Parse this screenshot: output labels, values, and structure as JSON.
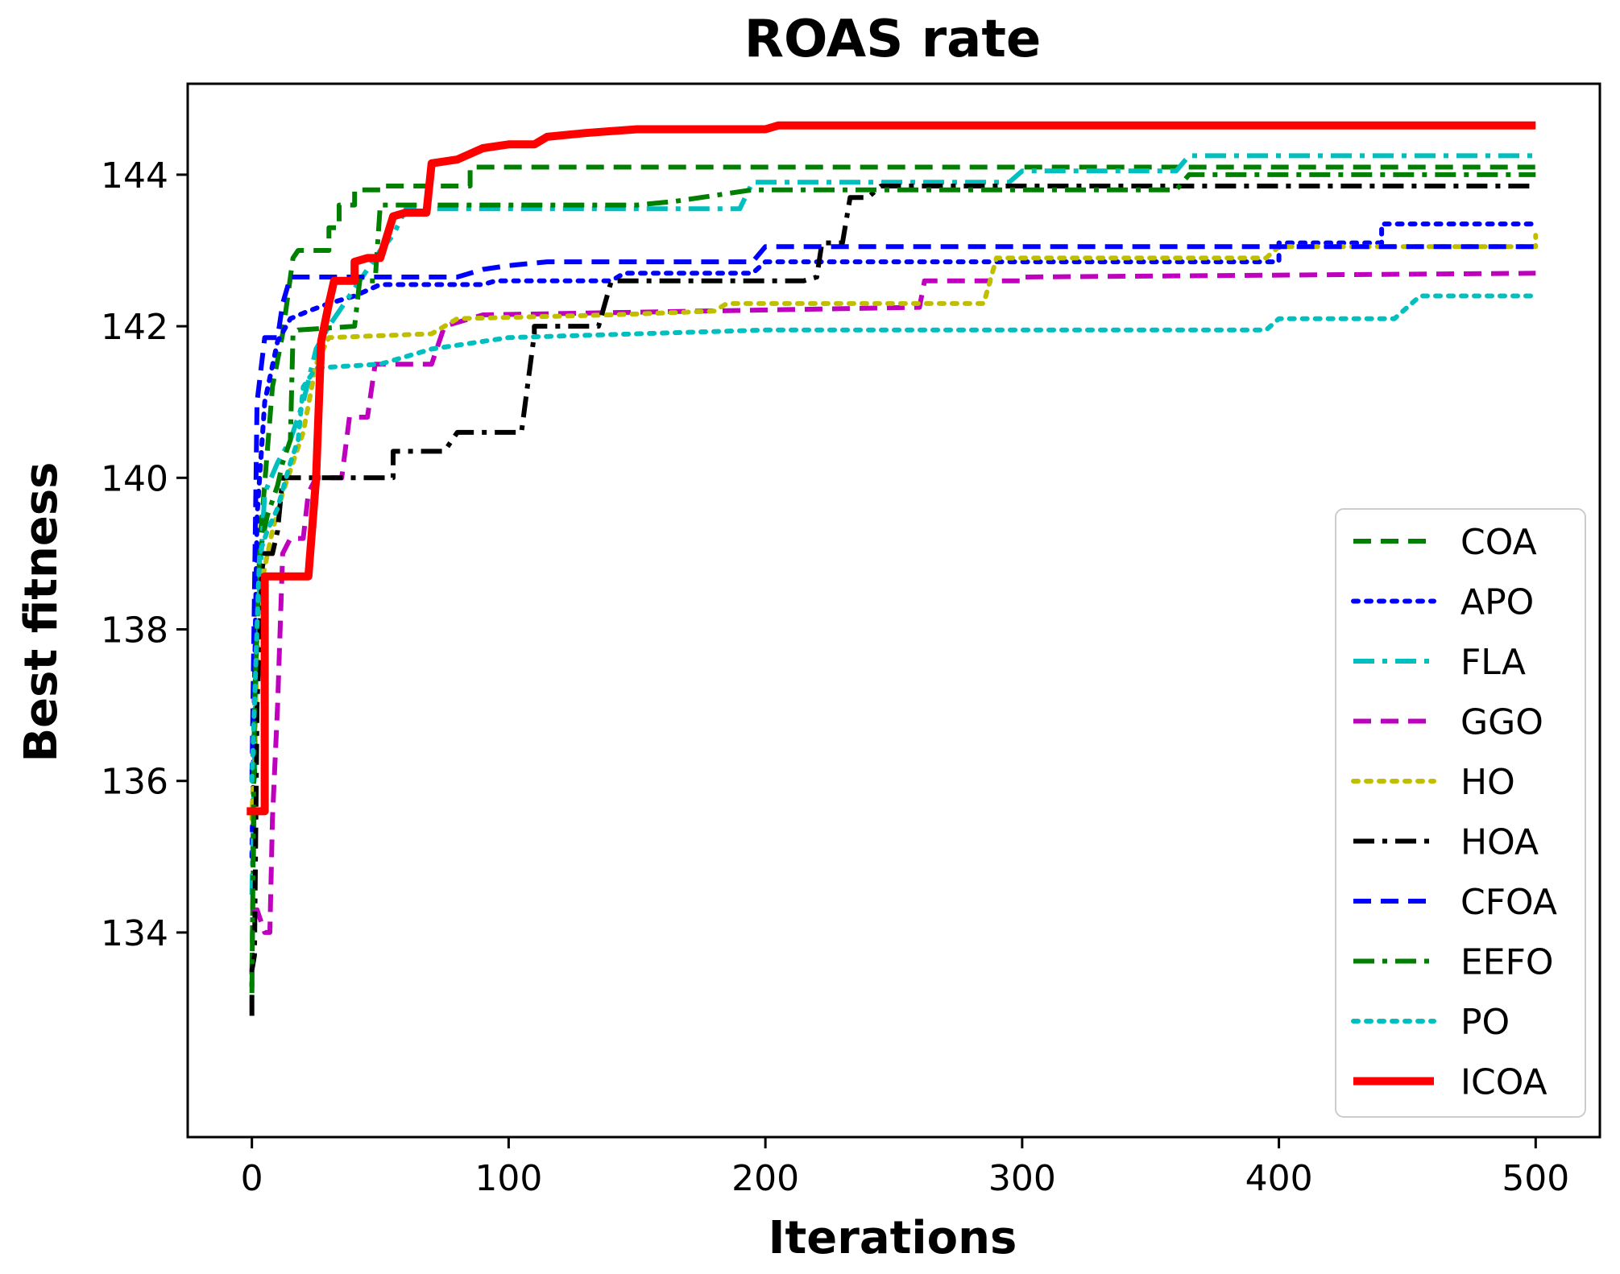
{
  "chart_data": {
    "type": "line",
    "title": "ROAS rate",
    "xlabel": "Iterations",
    "ylabel": "Best fitness",
    "xlim": [
      -25,
      525
    ],
    "ylim": [
      131.3,
      145.2
    ],
    "xticks": [
      0,
      100,
      200,
      300,
      400,
      500
    ],
    "yticks": [
      134,
      136,
      138,
      140,
      142,
      144
    ],
    "grid": false,
    "legend_position": "lower-right",
    "series": [
      {
        "name": "COA",
        "color": "#008000",
        "style": "dashed",
        "width": 6,
        "points": [
          [
            0,
            133.5
          ],
          [
            1,
            136
          ],
          [
            2,
            138.8
          ],
          [
            4,
            139.5
          ],
          [
            8,
            141.2
          ],
          [
            12,
            141.9
          ],
          [
            16,
            142.9
          ],
          [
            18,
            143.0
          ],
          [
            30,
            143.0
          ],
          [
            30,
            143.3
          ],
          [
            34,
            143.3
          ],
          [
            34,
            143.6
          ],
          [
            40,
            143.6
          ],
          [
            40,
            143.8
          ],
          [
            50,
            143.8
          ],
          [
            50,
            143.85
          ],
          [
            75,
            143.85
          ],
          [
            85,
            143.85
          ],
          [
            85,
            144.1
          ],
          [
            500,
            144.1
          ]
        ]
      },
      {
        "name": "APO",
        "color": "#0000ff",
        "style": "dotted",
        "width": 6,
        "points": [
          [
            0,
            135
          ],
          [
            2,
            139.5
          ],
          [
            5,
            141.0
          ],
          [
            10,
            141.8
          ],
          [
            15,
            142.1
          ],
          [
            22,
            142.2
          ],
          [
            30,
            142.3
          ],
          [
            40,
            142.4
          ],
          [
            50,
            142.55
          ],
          [
            90,
            142.55
          ],
          [
            95,
            142.6
          ],
          [
            140,
            142.6
          ],
          [
            145,
            142.7
          ],
          [
            195,
            142.7
          ],
          [
            200,
            142.85
          ],
          [
            400,
            142.85
          ],
          [
            400,
            143.1
          ],
          [
            440,
            143.1
          ],
          [
            440,
            143.35
          ],
          [
            500,
            143.35
          ]
        ]
      },
      {
        "name": "FLA",
        "color": "#00bfbf",
        "style": "dashdot",
        "width": 6,
        "points": [
          [
            0,
            134.5
          ],
          [
            2,
            138
          ],
          [
            5,
            139.8
          ],
          [
            10,
            140.2
          ],
          [
            15,
            140.5
          ],
          [
            20,
            141.0
          ],
          [
            25,
            141.7
          ],
          [
            30,
            142.0
          ],
          [
            40,
            142.5
          ],
          [
            50,
            143.0
          ],
          [
            55,
            143.2
          ],
          [
            60,
            143.55
          ],
          [
            190,
            143.55
          ],
          [
            195,
            143.9
          ],
          [
            295,
            143.9
          ],
          [
            300,
            144.05
          ],
          [
            360,
            144.05
          ],
          [
            365,
            144.25
          ],
          [
            500,
            144.25
          ]
        ]
      },
      {
        "name": "GGO",
        "color": "#bf00bf",
        "style": "dashed",
        "width": 6,
        "points": [
          [
            0,
            134.3
          ],
          [
            2,
            134.3
          ],
          [
            5,
            134.0
          ],
          [
            7,
            134.0
          ],
          [
            8,
            135.5
          ],
          [
            10,
            137
          ],
          [
            12,
            139.0
          ],
          [
            15,
            139.2
          ],
          [
            20,
            139.2
          ],
          [
            22,
            139.8
          ],
          [
            25,
            140.0
          ],
          [
            35,
            140.0
          ],
          [
            38,
            140.8
          ],
          [
            45,
            140.8
          ],
          [
            48,
            141.5
          ],
          [
            65,
            141.5
          ],
          [
            70,
            141.5
          ],
          [
            75,
            142.0
          ],
          [
            80,
            142.05
          ],
          [
            90,
            142.15
          ],
          [
            260,
            142.25
          ],
          [
            262,
            142.6
          ],
          [
            300,
            142.6
          ],
          [
            300,
            142.65
          ],
          [
            500,
            142.7
          ]
        ]
      },
      {
        "name": "HO",
        "color": "#bfbf00",
        "style": "dotted",
        "width": 6,
        "points": [
          [
            0,
            135.5
          ],
          [
            3,
            138.5
          ],
          [
            8,
            139.3
          ],
          [
            12,
            139.8
          ],
          [
            20,
            140.6
          ],
          [
            25,
            141.5
          ],
          [
            30,
            141.85
          ],
          [
            70,
            141.9
          ],
          [
            80,
            142.1
          ],
          [
            140,
            142.15
          ],
          [
            180,
            142.2
          ],
          [
            185,
            142.3
          ],
          [
            285,
            142.3
          ],
          [
            290,
            142.9
          ],
          [
            395,
            142.9
          ],
          [
            400,
            143.05
          ],
          [
            500,
            143.05
          ],
          [
            500,
            143.2
          ]
        ]
      },
      {
        "name": "HOA",
        "color": "#000000",
        "style": "dashdot",
        "width": 6,
        "points": [
          [
            0,
            132.9
          ],
          [
            0,
            133.5
          ],
          [
            1,
            133.7
          ],
          [
            2,
            137
          ],
          [
            4,
            138.8
          ],
          [
            5,
            139.0
          ],
          [
            8,
            139.0
          ],
          [
            10,
            139.3
          ],
          [
            12,
            140.0
          ],
          [
            55,
            140.0
          ],
          [
            55,
            140.35
          ],
          [
            75,
            140.35
          ],
          [
            80,
            140.6
          ],
          [
            105,
            140.6
          ],
          [
            110,
            141.9
          ],
          [
            110,
            142.0
          ],
          [
            135,
            142.0
          ],
          [
            140,
            142.6
          ],
          [
            215,
            142.6
          ],
          [
            220,
            142.65
          ],
          [
            222,
            143.1
          ],
          [
            230,
            143.1
          ],
          [
            233,
            143.7
          ],
          [
            240,
            143.7
          ],
          [
            245,
            143.85
          ],
          [
            500,
            143.85
          ]
        ]
      },
      {
        "name": "CFOA",
        "color": "#0000ff",
        "style": "dashed",
        "width": 6,
        "points": [
          [
            0,
            136
          ],
          [
            2,
            141.0
          ],
          [
            5,
            141.85
          ],
          [
            10,
            141.85
          ],
          [
            12,
            142.3
          ],
          [
            15,
            142.65
          ],
          [
            80,
            142.65
          ],
          [
            90,
            142.75
          ],
          [
            100,
            142.8
          ],
          [
            115,
            142.85
          ],
          [
            195,
            142.85
          ],
          [
            200,
            143.05
          ],
          [
            500,
            143.05
          ],
          [
            500,
            143.15
          ]
        ]
      },
      {
        "name": "EEFO",
        "color": "#008000",
        "style": "dashdot",
        "width": 6,
        "points": [
          [
            0,
            133.2
          ],
          [
            1,
            137
          ],
          [
            3,
            139.0
          ],
          [
            6,
            139.5
          ],
          [
            10,
            139.9
          ],
          [
            12,
            140.2
          ],
          [
            15,
            140.5
          ],
          [
            16,
            141.9
          ],
          [
            18,
            141.95
          ],
          [
            40,
            142.0
          ],
          [
            42,
            142.6
          ],
          [
            48,
            142.6
          ],
          [
            50,
            143.6
          ],
          [
            150,
            143.6
          ],
          [
            165,
            143.65
          ],
          [
            195,
            143.8
          ],
          [
            360,
            143.8
          ],
          [
            365,
            144.0
          ],
          [
            500,
            144.0
          ]
        ]
      },
      {
        "name": "PO",
        "color": "#00bfbf",
        "style": "dotted",
        "width": 6,
        "points": [
          [
            0,
            136
          ],
          [
            3,
            139.0
          ],
          [
            6,
            139.3
          ],
          [
            10,
            139.6
          ],
          [
            15,
            140.2
          ],
          [
            18,
            140.5
          ],
          [
            20,
            141.2
          ],
          [
            25,
            141.45
          ],
          [
            50,
            141.5
          ],
          [
            60,
            141.6
          ],
          [
            70,
            141.7
          ],
          [
            100,
            141.85
          ],
          [
            200,
            141.95
          ],
          [
            395,
            141.95
          ],
          [
            400,
            142.1
          ],
          [
            445,
            142.1
          ],
          [
            455,
            142.4
          ],
          [
            500,
            142.4
          ]
        ]
      },
      {
        "name": "ICOA",
        "color": "#ff0000",
        "style": "solid",
        "width": 10,
        "points": [
          [
            -2,
            135.6
          ],
          [
            5,
            135.6
          ],
          [
            5,
            138.7
          ],
          [
            22,
            138.7
          ],
          [
            25,
            140.0
          ],
          [
            27,
            141.8
          ],
          [
            30,
            142.3
          ],
          [
            32,
            142.6
          ],
          [
            40,
            142.6
          ],
          [
            40,
            142.85
          ],
          [
            45,
            142.9
          ],
          [
            50,
            142.9
          ],
          [
            55,
            143.45
          ],
          [
            60,
            143.5
          ],
          [
            68,
            143.5
          ],
          [
            70,
            144.15
          ],
          [
            80,
            144.2
          ],
          [
            90,
            144.35
          ],
          [
            100,
            144.4
          ],
          [
            110,
            144.4
          ],
          [
            115,
            144.5
          ],
          [
            130,
            144.55
          ],
          [
            150,
            144.6
          ],
          [
            200,
            144.6
          ],
          [
            205,
            144.65
          ],
          [
            500,
            144.65
          ]
        ]
      }
    ]
  }
}
